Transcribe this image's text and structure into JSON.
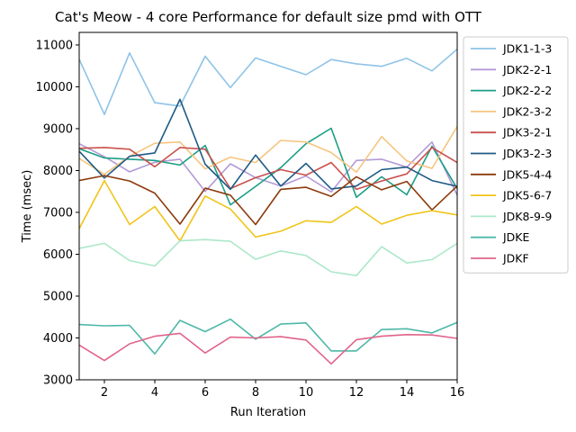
{
  "chart_data": {
    "type": "line",
    "title": "Cat's Meow - 4 core Performance for default size pmd with OTT",
    "xlabel": "Run Iteration",
    "ylabel": "Time (msec)",
    "xlim": [
      1,
      16
    ],
    "ylim": [
      3000,
      11300
    ],
    "xticks": [
      2,
      4,
      6,
      8,
      10,
      12,
      14,
      16
    ],
    "yticks": [
      3000,
      4000,
      5000,
      6000,
      7000,
      8000,
      9000,
      10000,
      11000
    ],
    "grid": false,
    "legend_position": "outside-right",
    "x": [
      1,
      2,
      3,
      4,
      5,
      6,
      7,
      8,
      9,
      10,
      11,
      12,
      13,
      14,
      15,
      16
    ],
    "series": [
      {
        "name": "JDK1-1-3",
        "color": "#8ec3e6",
        "values": [
          10660,
          9340,
          10810,
          9620,
          9540,
          10730,
          9980,
          10690,
          10490,
          10290,
          10650,
          10550,
          10490,
          10680,
          10380,
          10900
        ]
      },
      {
        "name": "JDK2-2-1",
        "color": "#b39ad6",
        "values": [
          8640,
          8330,
          7970,
          8200,
          8270,
          7500,
          8160,
          7830,
          7630,
          7870,
          7490,
          8240,
          8270,
          8080,
          8680,
          7410
        ]
      },
      {
        "name": "JDK2-2-2",
        "color": "#1b9e85",
        "values": [
          8520,
          8300,
          8270,
          8240,
          8130,
          8600,
          7180,
          7620,
          8070,
          8640,
          9010,
          7360,
          7850,
          7420,
          8580,
          7570
        ]
      },
      {
        "name": "JDK2-3-2",
        "color": "#f6c580",
        "values": [
          8290,
          7910,
          8340,
          8650,
          8680,
          8040,
          8320,
          8190,
          8720,
          8680,
          8430,
          7960,
          8810,
          8230,
          8050,
          9050
        ]
      },
      {
        "name": "JDK3-2-1",
        "color": "#c9514d",
        "values": [
          8530,
          8550,
          8510,
          8090,
          8550,
          8510,
          7570,
          7830,
          8020,
          7890,
          8190,
          7550,
          7750,
          7920,
          8550,
          8190
        ]
      },
      {
        "name": "JDK3-2-3",
        "color": "#1e5a85",
        "values": [
          8460,
          7820,
          8340,
          8420,
          9700,
          8150,
          7550,
          8370,
          7630,
          8170,
          7560,
          7630,
          8020,
          8080,
          7760,
          7620
        ]
      },
      {
        "name": "JDK5-4-4",
        "color": "#8c3b0c",
        "values": [
          7760,
          7880,
          7750,
          7460,
          6720,
          7580,
          7410,
          6710,
          7550,
          7600,
          7380,
          7850,
          7540,
          7740,
          7060,
          7630
        ]
      },
      {
        "name": "JDK5-6-7",
        "color": "#f0c419",
        "values": [
          6610,
          7760,
          6710,
          7140,
          6320,
          7390,
          7080,
          6410,
          6550,
          6800,
          6760,
          7140,
          6720,
          6930,
          7040,
          6940
        ]
      },
      {
        "name": "JDK8-9-9",
        "color": "#abe8c8",
        "values": [
          6140,
          6260,
          5850,
          5720,
          6320,
          6350,
          6310,
          5880,
          6080,
          5970,
          5580,
          5490,
          6180,
          5790,
          5870,
          6260
        ]
      },
      {
        "name": "JDKE",
        "color": "#4db8a8",
        "values": [
          4320,
          4290,
          4300,
          3620,
          4420,
          4150,
          4450,
          3970,
          4330,
          4360,
          3690,
          3690,
          4200,
          4220,
          4120,
          4370
        ]
      },
      {
        "name": "JDKF",
        "color": "#e0648a",
        "values": [
          3830,
          3460,
          3860,
          4040,
          4110,
          3640,
          4020,
          4000,
          4030,
          3950,
          3380,
          3960,
          4040,
          4080,
          4070,
          3990
        ]
      }
    ]
  }
}
